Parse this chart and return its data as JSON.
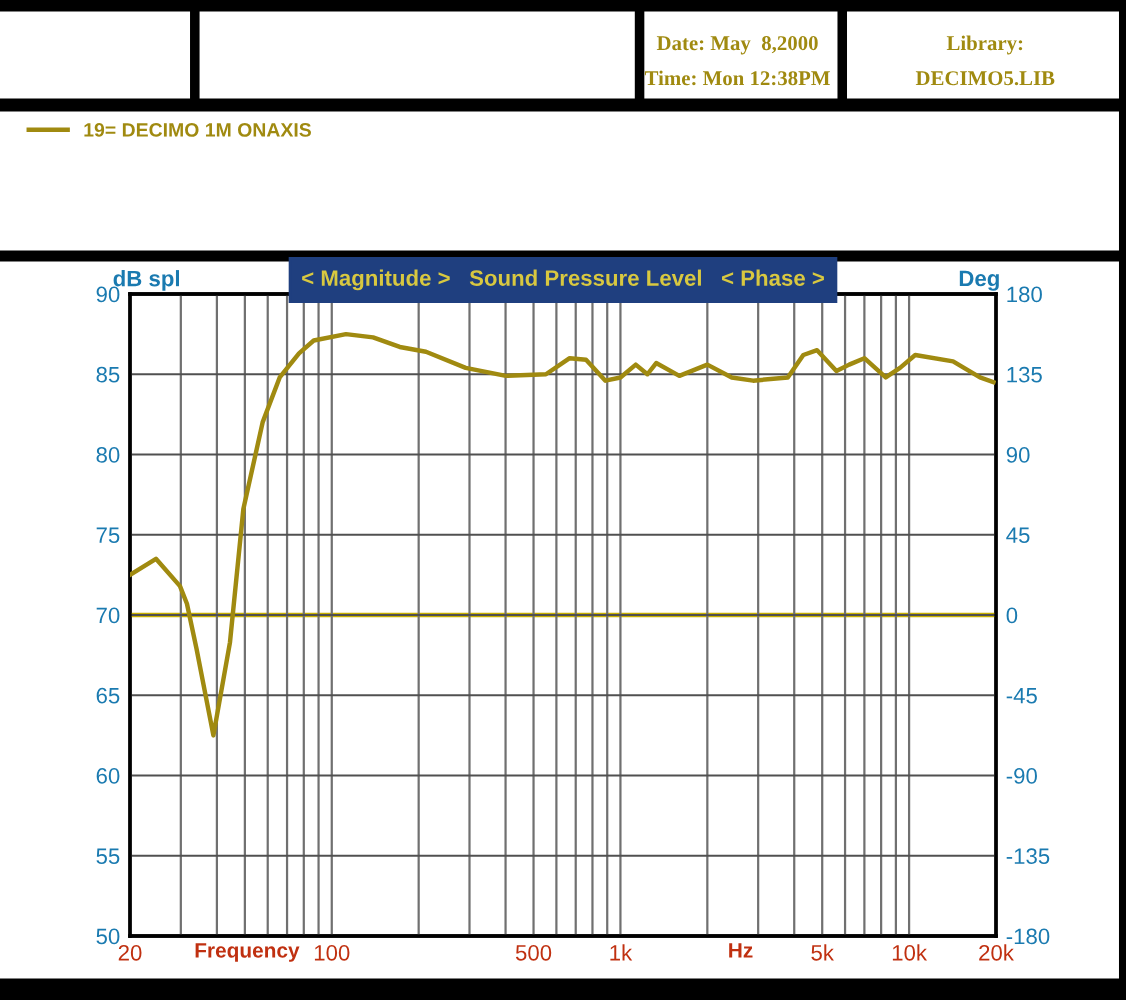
{
  "chart_data": {
    "type": "line",
    "title": "< Magnitude >   Sound Pressure Level   < Phase >",
    "ylabel": "dB spl",
    "y2label": "Deg",
    "annotations": [
      "Date: May  8,2000",
      "Time: Mon 12:38PM",
      "Library:",
      "DECIMO5.LIB",
      "Frequency",
      "Hz"
    ],
    "series": [
      {
        "name": "19= DECIMO 1M ONAXIS",
        "color": "#a08a10",
        "x": [
          20,
          24.6,
          29.8,
          31.5,
          34,
          38.9,
          44.4,
          49.4,
          57.6,
          66,
          77,
          86.6,
          112,
          139,
          172,
          212,
          291,
          401,
          552,
          667,
          760,
          887,
          1000,
          1130,
          1240,
          1330,
          1600,
          2000,
          2430,
          2880,
          3800,
          4300,
          4800,
          5600,
          6200,
          7000,
          8300,
          9300,
          10500,
          14200,
          17600,
          19600
        ],
        "values": [
          72.5,
          73.5,
          71.8,
          70.7,
          67.9,
          62.5,
          68.3,
          76.6,
          82.0,
          84.8,
          86.3,
          87.1,
          87.5,
          87.3,
          86.7,
          86.4,
          85.4,
          84.9,
          85.0,
          86.0,
          85.9,
          84.6,
          84.8,
          85.6,
          85.0,
          85.7,
          84.9,
          85.6,
          84.8,
          84.6,
          84.8,
          86.2,
          86.5,
          85.2,
          85.6,
          86.0,
          84.8,
          85.4,
          86.2,
          85.8,
          84.8,
          84.5
        ]
      }
    ],
    "log": "x",
    "xlim": [
      20,
      20000
    ],
    "xticks": [
      {
        "value": 20,
        "label": "20"
      },
      {
        "value": 30,
        "label": null
      },
      {
        "value": 40,
        "label": null
      },
      {
        "value": 50,
        "label": null
      },
      {
        "value": 60,
        "label": null
      },
      {
        "value": 70,
        "label": null
      },
      {
        "value": 80,
        "label": null
      },
      {
        "value": 90,
        "label": null
      },
      {
        "value": 100,
        "label": "100"
      },
      {
        "value": 200,
        "label": null
      },
      {
        "value": 300,
        "label": null
      },
      {
        "value": 400,
        "label": null
      },
      {
        "value": 500,
        "label": "500"
      },
      {
        "value": 600,
        "label": null
      },
      {
        "value": 700,
        "label": null
      },
      {
        "value": 800,
        "label": null
      },
      {
        "value": 900,
        "label": null
      },
      {
        "value": 1000,
        "label": "1k"
      },
      {
        "value": 2000,
        "label": null
      },
      {
        "value": 3000,
        "label": null
      },
      {
        "value": 4000,
        "label": null
      },
      {
        "value": 5000,
        "label": "5k"
      },
      {
        "value": 6000,
        "label": null
      },
      {
        "value": 7000,
        "label": null
      },
      {
        "value": 8000,
        "label": null
      },
      {
        "value": 9000,
        "label": null
      },
      {
        "value": 10000,
        "label": "10k"
      },
      {
        "value": 20000,
        "label": "20k"
      }
    ],
    "ylim": [
      50,
      90
    ],
    "yticks": [
      50,
      55,
      60,
      65,
      70,
      75,
      80,
      85,
      90
    ],
    "y2lim": [
      -180,
      180
    ],
    "y2ticks": [
      {
        "value": -180,
        "label": "-180"
      },
      {
        "value": -135,
        "label": "-135"
      },
      {
        "value": -90,
        "label": "-90"
      },
      {
        "value": -45,
        "label": "-45"
      },
      0,
      45,
      90,
      135,
      180
    ],
    "ref_lines": [
      {
        "axis": "y2",
        "value": 0,
        "color": "#c8b000"
      }
    ],
    "grid": true,
    "legend": "top left"
  }
}
